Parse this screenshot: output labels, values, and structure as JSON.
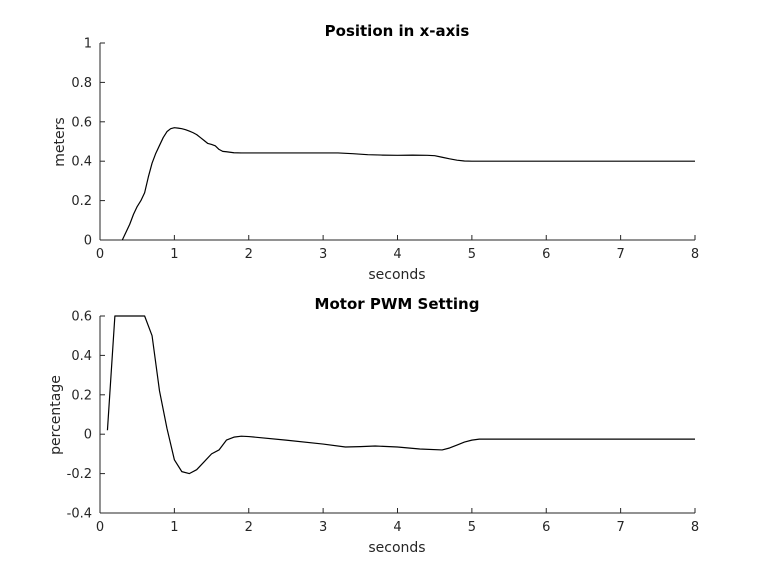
{
  "chart_data": [
    {
      "type": "line",
      "title": "Position in x-axis",
      "xlabel": "seconds",
      "ylabel": "meters",
      "xlim": [
        0,
        8
      ],
      "ylim": [
        0,
        1
      ],
      "xticks": [
        0,
        1,
        2,
        3,
        4,
        5,
        6,
        7,
        8
      ],
      "yticks": [
        0,
        0.2,
        0.4,
        0.6,
        0.8,
        1
      ],
      "ytick_labels": [
        "0",
        "0.2",
        "0.4",
        "0.6",
        "0.8",
        "1"
      ],
      "grid": false,
      "series": [
        {
          "color": "#000000",
          "x": [
            0.3,
            0.35,
            0.4,
            0.45,
            0.5,
            0.55,
            0.6,
            0.65,
            0.7,
            0.75,
            0.8,
            0.85,
            0.9,
            0.95,
            1.0,
            1.05,
            1.1,
            1.15,
            1.2,
            1.25,
            1.3,
            1.35,
            1.4,
            1.45,
            1.5,
            1.55,
            1.6,
            1.65,
            1.7,
            1.8,
            1.9,
            2.0,
            2.5,
            3.0,
            3.2,
            3.4,
            3.6,
            3.8,
            4.0,
            4.2,
            4.4,
            4.5,
            4.6,
            4.7,
            4.8,
            4.9,
            5.0,
            5.5,
            6.0,
            6.5,
            7.0,
            7.5,
            8.0
          ],
          "y": [
            0.0,
            0.04,
            0.08,
            0.13,
            0.17,
            0.2,
            0.24,
            0.32,
            0.39,
            0.44,
            0.48,
            0.52,
            0.55,
            0.565,
            0.57,
            0.568,
            0.565,
            0.56,
            0.553,
            0.545,
            0.535,
            0.52,
            0.505,
            0.49,
            0.485,
            0.478,
            0.46,
            0.45,
            0.448,
            0.443,
            0.442,
            0.442,
            0.442,
            0.442,
            0.442,
            0.438,
            0.433,
            0.431,
            0.43,
            0.431,
            0.43,
            0.428,
            0.42,
            0.412,
            0.405,
            0.401,
            0.4,
            0.4,
            0.4,
            0.4,
            0.4,
            0.4,
            0.4
          ]
        }
      ]
    },
    {
      "type": "line",
      "title": "Motor PWM Setting",
      "xlabel": "seconds",
      "ylabel": "percentage",
      "xlim": [
        0,
        8
      ],
      "ylim": [
        -0.4,
        0.6
      ],
      "xticks": [
        0,
        1,
        2,
        3,
        4,
        5,
        6,
        7,
        8
      ],
      "yticks": [
        -0.4,
        -0.2,
        0,
        0.2,
        0.4,
        0.6
      ],
      "ytick_labels": [
        "-0.4",
        "-0.2",
        "0",
        "0.2",
        "0.4",
        "0.6"
      ],
      "grid": false,
      "series": [
        {
          "color": "#000000",
          "x": [
            0.1,
            0.2,
            0.3,
            0.4,
            0.5,
            0.6,
            0.7,
            0.8,
            0.9,
            1.0,
            1.1,
            1.2,
            1.3,
            1.4,
            1.5,
            1.6,
            1.7,
            1.8,
            1.9,
            2.0,
            2.5,
            3.0,
            3.3,
            3.5,
            3.7,
            4.0,
            4.3,
            4.6,
            4.7,
            4.8,
            4.9,
            5.0,
            5.1,
            5.5,
            6.0,
            7.0,
            8.0
          ],
          "y": [
            0.02,
            0.6,
            0.6,
            0.6,
            0.6,
            0.6,
            0.5,
            0.22,
            0.03,
            -0.13,
            -0.19,
            -0.2,
            -0.18,
            -0.14,
            -0.1,
            -0.08,
            -0.03,
            -0.015,
            -0.01,
            -0.012,
            -0.03,
            -0.05,
            -0.065,
            -0.063,
            -0.06,
            -0.065,
            -0.075,
            -0.08,
            -0.07,
            -0.055,
            -0.04,
            -0.03,
            -0.025,
            -0.025,
            -0.025,
            -0.025,
            -0.025
          ]
        }
      ]
    }
  ]
}
